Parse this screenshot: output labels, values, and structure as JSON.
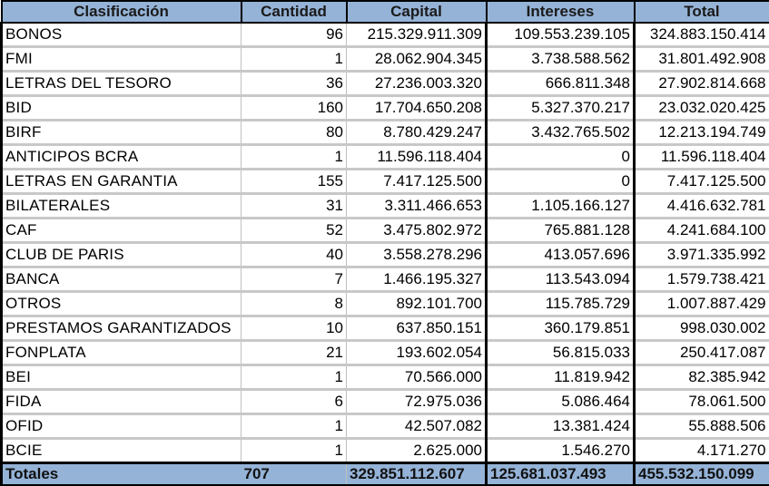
{
  "table": {
    "headers": [
      "Clasificación",
      "Cantidad",
      "Capital",
      "Intereses",
      "Total"
    ],
    "rows": [
      {
        "clasificacion": "BONOS",
        "cantidad": "96",
        "capital": "215.329.911.309",
        "intereses": "109.553.239.105",
        "total": "324.883.150.414"
      },
      {
        "clasificacion": "FMI",
        "cantidad": "1",
        "capital": "28.062.904.345",
        "intereses": "3.738.588.562",
        "total": "31.801.492.908"
      },
      {
        "clasificacion": "LETRAS  DEL  TESORO",
        "cantidad": "36",
        "capital": "27.236.003.320",
        "intereses": "666.811.348",
        "total": "27.902.814.668"
      },
      {
        "clasificacion": "BID",
        "cantidad": "160",
        "capital": "17.704.650.208",
        "intereses": "5.327.370.217",
        "total": "23.032.020.425"
      },
      {
        "clasificacion": "BIRF",
        "cantidad": "80",
        "capital": "8.780.429.247",
        "intereses": "3.432.765.502",
        "total": "12.213.194.749"
      },
      {
        "clasificacion": "ANTICIPOS  BCRA",
        "cantidad": "1",
        "capital": "11.596.118.404",
        "intereses": "0",
        "total": "11.596.118.404"
      },
      {
        "clasificacion": "LETRAS  EN  GARANTIA",
        "cantidad": "155",
        "capital": "7.417.125.500",
        "intereses": "0",
        "total": "7.417.125.500"
      },
      {
        "clasificacion": "BILATERALES",
        "cantidad": "31",
        "capital": "3.311.466.653",
        "intereses": "1.105.166.127",
        "total": "4.416.632.781"
      },
      {
        "clasificacion": "CAF",
        "cantidad": "52",
        "capital": "3.475.802.972",
        "intereses": "765.881.128",
        "total": "4.241.684.100"
      },
      {
        "clasificacion": "CLUB  DE  PARIS",
        "cantidad": "40",
        "capital": "3.558.278.296",
        "intereses": "413.057.696",
        "total": "3.971.335.992"
      },
      {
        "clasificacion": "BANCA",
        "cantidad": "7",
        "capital": "1.466.195.327",
        "intereses": "113.543.094",
        "total": "1.579.738.421"
      },
      {
        "clasificacion": "OTROS",
        "cantidad": "8",
        "capital": "892.101.700",
        "intereses": "115.785.729",
        "total": "1.007.887.429"
      },
      {
        "clasificacion": "PRESTAMOS  GARANTIZADOS",
        "cantidad": "10",
        "capital": "637.850.151",
        "intereses": "360.179.851",
        "total": "998.030.002"
      },
      {
        "clasificacion": "FONPLATA",
        "cantidad": "21",
        "capital": "193.602.054",
        "intereses": "56.815.033",
        "total": "250.417.087"
      },
      {
        "clasificacion": "BEI",
        "cantidad": "1",
        "capital": "70.566.000",
        "intereses": "11.819.942",
        "total": "82.385.942"
      },
      {
        "clasificacion": "FIDA",
        "cantidad": "6",
        "capital": "72.975.036",
        "intereses": "5.086.464",
        "total": "78.061.500"
      },
      {
        "clasificacion": "OFID",
        "cantidad": "1",
        "capital": "42.507.082",
        "intereses": "13.381.424",
        "total": "55.888.506"
      },
      {
        "clasificacion": "BCIE",
        "cantidad": "1",
        "capital": "2.625.000",
        "intereses": "1.546.270",
        "total": "4.171.270"
      }
    ],
    "totals": {
      "label": "Totales",
      "cantidad": "707",
      "capital": "329.851.112.607",
      "intereses": "125.681.037.493",
      "total": "455.532.150.099"
    }
  },
  "colors": {
    "header_bg": "#95b3d7",
    "grid": "#c0c0c0",
    "border": "#000000"
  }
}
